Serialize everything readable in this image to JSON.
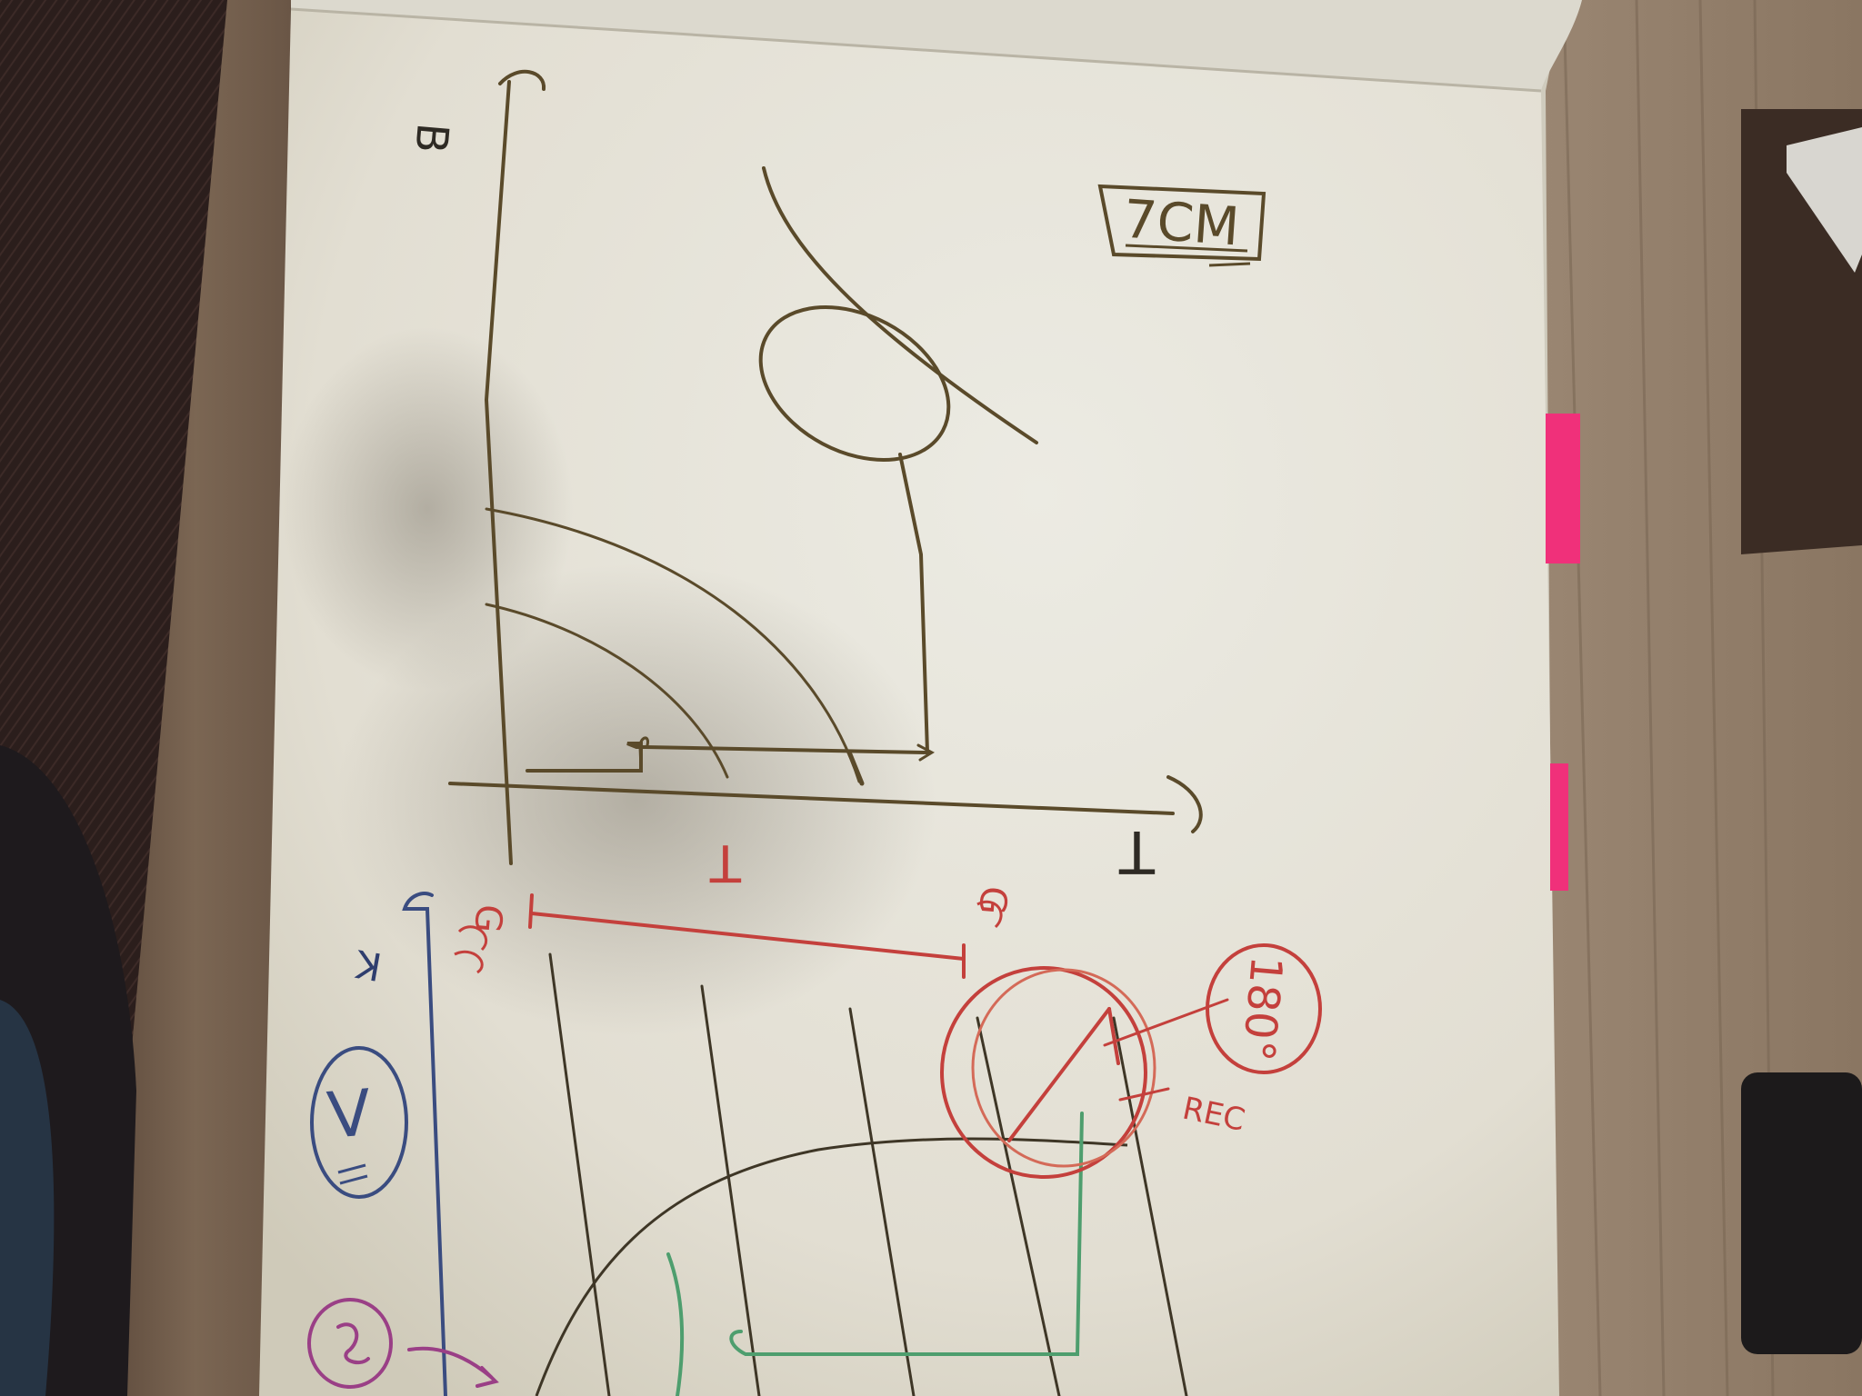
{
  "photo": {
    "upper_chart": {
      "y_axis_label": "B",
      "x_axis_label": "T",
      "boxed_note": "7CM"
    },
    "lower_diagram": {
      "top_label": "T",
      "left_tick_label": "G",
      "right_tick_label": "G",
      "circled_left_letter": "V",
      "circled_right_note": "180°",
      "side_note": "REC",
      "axis_mark": "K"
    },
    "colors": {
      "paper": "#e9e6dc",
      "pencil": "#5a4a2a",
      "red_marker": "#c4403c",
      "blue_marker": "#3a4c80",
      "green_marker": "#4e9e6e",
      "purple_marker": "#9a3f86",
      "sticky_note": "#f0307a"
    }
  }
}
